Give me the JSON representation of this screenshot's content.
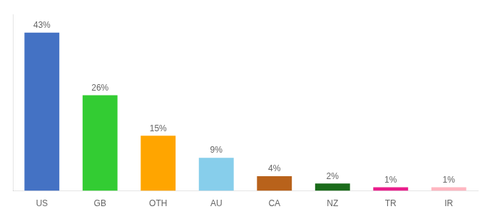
{
  "chart_data": {
    "type": "bar",
    "categories": [
      "US",
      "GB",
      "OTH",
      "AU",
      "CA",
      "NZ",
      "TR",
      "IR"
    ],
    "values": [
      43,
      26,
      15,
      9,
      4,
      2,
      1,
      1
    ],
    "value_labels": [
      "43%",
      "26%",
      "15%",
      "9%",
      "4%",
      "2%",
      "1%",
      "1%"
    ],
    "colors": [
      "#4472C4",
      "#33CC33",
      "#FFA500",
      "#87CEEB",
      "#B8621B",
      "#1A6B1A",
      "#E91E8C",
      "#FFB6C1"
    ],
    "ylim": [
      0,
      48
    ],
    "data_labels": true,
    "tick_labels": "x",
    "grid": false
  }
}
